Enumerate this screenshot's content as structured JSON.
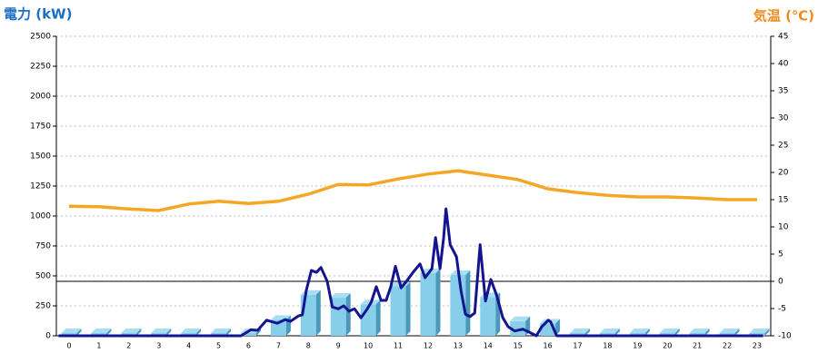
{
  "chart_data": {
    "type": "combo",
    "y_title": "電力 (kW)",
    "y_title_color": "#1a6fc4",
    "y2_title": "気温 (℃)",
    "y2_title_color": "#f08a1c",
    "categories": [
      "0",
      "1",
      "2",
      "3",
      "4",
      "5",
      "6",
      "7",
      "8",
      "9",
      "10",
      "11",
      "12",
      "13",
      "14",
      "15",
      "16",
      "17",
      "18",
      "19",
      "20",
      "21",
      "22",
      "23"
    ],
    "ylim": [
      0,
      2500
    ],
    "yticks": [
      0,
      250,
      500,
      750,
      1000,
      1250,
      1500,
      1750,
      2000,
      2250,
      2500
    ],
    "y2lim": [
      -10,
      45
    ],
    "y2ticks": [
      -10,
      -5,
      0,
      5,
      10,
      15,
      20,
      25,
      30,
      35,
      40,
      45
    ],
    "grid": true,
    "y2_baseline": 0,
    "bars": {
      "name": "hourly",
      "color": "#87ceeb",
      "values": [
        0,
        0,
        0,
        0,
        0,
        0,
        0,
        110,
        320,
        295,
        240,
        390,
        500,
        485,
        300,
        100,
        80,
        0,
        0,
        0,
        0,
        0,
        0,
        0
      ]
    },
    "power_line": {
      "color": "#14148f",
      "x": [
        -0.35,
        5.75,
        6.08,
        6.3,
        6.6,
        6.96,
        7.23,
        7.4,
        7.66,
        7.8,
        7.93,
        8.1,
        8.27,
        8.42,
        8.63,
        8.8,
        9.0,
        9.18,
        9.36,
        9.54,
        9.76,
        9.97,
        10.1,
        10.27,
        10.43,
        10.6,
        10.76,
        10.91,
        11.1,
        11.28,
        11.5,
        11.73,
        11.9,
        12.13,
        12.25,
        12.4,
        12.52,
        12.6,
        12.74,
        12.95,
        13.1,
        13.25,
        13.4,
        13.56,
        13.74,
        13.92,
        14.1,
        14.29,
        14.5,
        14.68,
        14.9,
        15.17,
        15.38,
        15.62,
        15.8,
        16.02,
        16.1,
        16.3,
        23.2
      ],
      "values": [
        0,
        0,
        50,
        45,
        130,
        105,
        135,
        120,
        165,
        175,
        380,
        545,
        530,
        570,
        455,
        240,
        225,
        250,
        205,
        225,
        150,
        225,
        280,
        410,
        295,
        295,
        415,
        580,
        400,
        455,
        530,
        600,
        485,
        560,
        820,
        560,
        815,
        1060,
        760,
        660,
        380,
        180,
        160,
        190,
        760,
        290,
        470,
        340,
        150,
        75,
        40,
        55,
        30,
        0,
        75,
        130,
        115,
        0,
        0
      ]
    },
    "temperature": {
      "color": "#f5a623",
      "axis": "y2",
      "values": [
        13.8,
        13.7,
        13.3,
        13,
        14.2,
        14.7,
        14.3,
        14.7,
        16,
        17.8,
        17.7,
        18.8,
        19.7,
        20.3,
        19.5,
        18.7,
        17,
        16.3,
        15.8,
        15.5,
        15.5,
        15.3,
        15,
        15
      ]
    }
  }
}
